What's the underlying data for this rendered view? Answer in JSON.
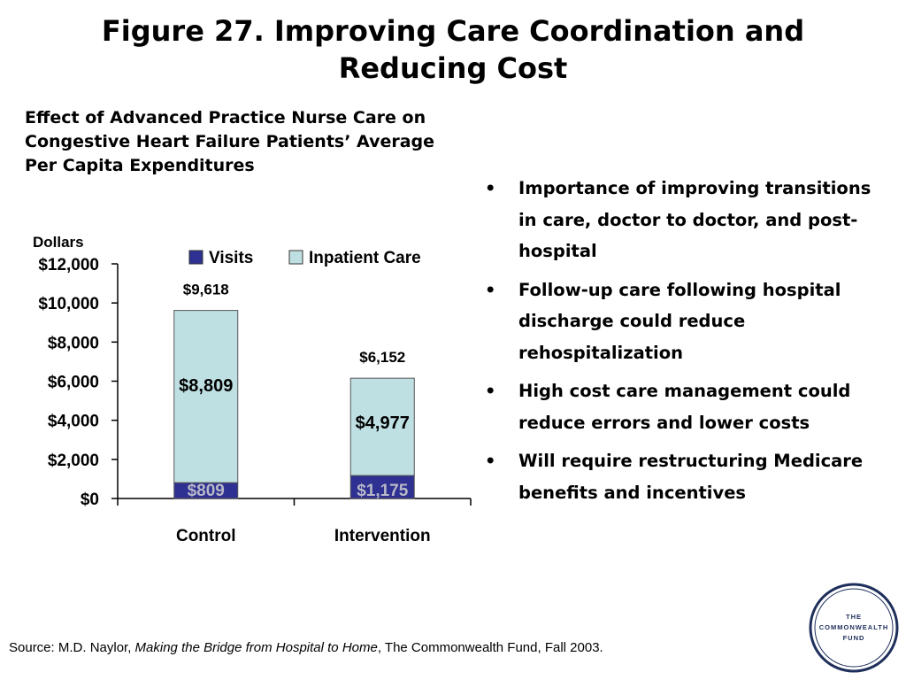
{
  "title": "Figure 27. Improving Care Coordination and Reducing Cost",
  "subtitle": "Effect of Advanced Practice Nurse Care on Congestive Heart Failure Patients’ Average Per Capita Expenditures",
  "chart_data": {
    "type": "bar",
    "stacked": true,
    "ylabel": "Dollars",
    "ylim": [
      0,
      12000
    ],
    "yticks": [
      "$0",
      "$2,000",
      "$4,000",
      "$6,000",
      "$8,000",
      "$10,000",
      "$12,000"
    ],
    "ytick_values": [
      0,
      2000,
      4000,
      6000,
      8000,
      10000,
      12000
    ],
    "categories": [
      "Control",
      "Intervention"
    ],
    "legend_position": "top-right",
    "series": [
      {
        "name": "Visits",
        "values": [
          809,
          1175
        ],
        "labels": [
          "$809",
          "$1,175"
        ],
        "color": "#2e3192",
        "label_color": "#b8b8c8"
      },
      {
        "name": "Inpatient Care",
        "values": [
          8809,
          4977
        ],
        "labels": [
          "$8,809",
          "$4,977"
        ],
        "color": "#bfe0e3",
        "label_color": "#000000"
      }
    ],
    "totals": [
      9618,
      6152
    ],
    "total_labels": [
      "$9,618",
      "$6,152"
    ]
  },
  "bullets": [
    "Importance of improving transitions in care, doctor to doctor, and post-hospital",
    "Follow-up care following hospital discharge could reduce rehospitalization",
    "High cost care management could reduce errors and lower costs",
    "Will require restructuring Medicare benefits and incentives"
  ],
  "bullet_symbol": "•",
  "source": {
    "prefix": "Source:  M.D. Naylor, ",
    "italic": "Making the Bridge from Hospital to Home",
    "suffix": ", The Commonwealth Fund, Fall 2003."
  },
  "logo": {
    "line1": "THE",
    "line2": "COMMONWEALTH",
    "line3": "FUND",
    "color": "#1f2f5c"
  }
}
